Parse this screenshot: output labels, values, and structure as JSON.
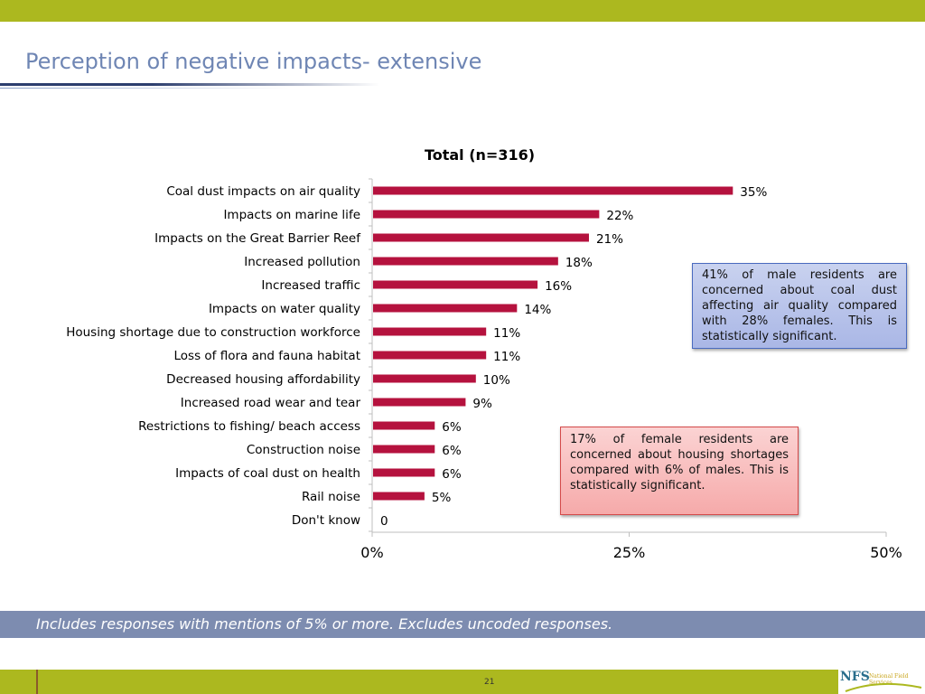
{
  "slide": {
    "title": "Perception of negative impacts- extensive",
    "note": "Includes responses with mentions of 5% or more. Excludes uncoded responses.",
    "page_number": "21",
    "logo_text": "NFS",
    "logo_subtext": "National Field Services"
  },
  "callouts": {
    "male": "41% of male residents are concerned about coal dust affecting air quality compared with 28% females. This is statistically significant.",
    "female": "17% of female residents are concerned about housing shortages compared with 6% of males. This is statistically significant."
  },
  "colors": {
    "bar": "#b5123e",
    "accent_bar": "#acb81f",
    "title": "#6f86b4",
    "note_band": "#7d8cb0"
  },
  "chart_data": {
    "type": "bar",
    "orientation": "horizontal",
    "title": "Total (n=316)",
    "categories": [
      "Coal dust impacts on air quality",
      "Impacts on marine life",
      "Impacts on the Great Barrier Reef",
      "Increased pollution",
      "Increased traffic",
      "Impacts on water quality",
      "Housing shortage due to construction workforce",
      "Loss of flora and fauna habitat",
      "Decreased housing affordability",
      "Increased road wear and tear",
      "Restrictions to fishing/ beach access",
      "Construction noise",
      "Impacts of coal dust on health",
      "Rail noise",
      "Don't know"
    ],
    "values": [
      35,
      22,
      21,
      18,
      16,
      14,
      11,
      11,
      10,
      9,
      6,
      6,
      6,
      5,
      0
    ],
    "data_labels": [
      "35%",
      "22%",
      "21%",
      "18%",
      "16%",
      "14%",
      "11%",
      "11%",
      "10%",
      "9%",
      "6%",
      "6%",
      "6%",
      "5%",
      "0"
    ],
    "xlim": [
      0,
      50
    ],
    "xticks": [
      0,
      25,
      50
    ],
    "xtick_labels": [
      "0%",
      "25%",
      "50%"
    ],
    "grid": false,
    "legend": "none"
  }
}
